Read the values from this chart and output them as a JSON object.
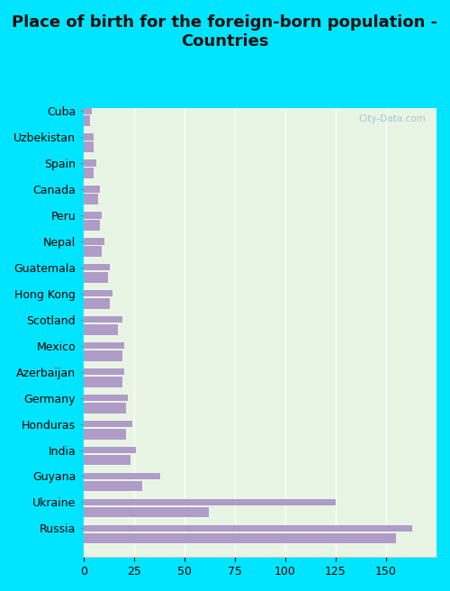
{
  "title": "Place of birth for the foreign-born population -\nCountries",
  "categories": [
    "Russia",
    "Ukraine",
    "Guyana",
    "India",
    "Honduras",
    "Germany",
    "Azerbaijan",
    "Mexico",
    "Scotland",
    "Hong Kong",
    "Guatemala",
    "Nepal",
    "Peru",
    "Canada",
    "Spain",
    "Uzbekistan",
    "Cuba"
  ],
  "values1": [
    163,
    125,
    38,
    26,
    24,
    22,
    20,
    20,
    19,
    14,
    13,
    10,
    9,
    8,
    6,
    5,
    4
  ],
  "values2": [
    155,
    62,
    29,
    23,
    21,
    21,
    19,
    19,
    17,
    13,
    12,
    9,
    8,
    7,
    5,
    5,
    3
  ],
  "bar_color": "#b09cc8",
  "thin_bar_height": 0.18,
  "thick_bar_height": 0.28,
  "xlim": [
    0,
    175
  ],
  "xticks": [
    0,
    25,
    50,
    75,
    100,
    125,
    150
  ],
  "bg_color_plot_top": "#f0faf0",
  "bg_color_plot_center": "#e8f5e0",
  "bg_color_fig": "#00e5ff",
  "title_fontsize": 13,
  "axis_label_fontsize": 9,
  "watermark": "City-Data.com"
}
